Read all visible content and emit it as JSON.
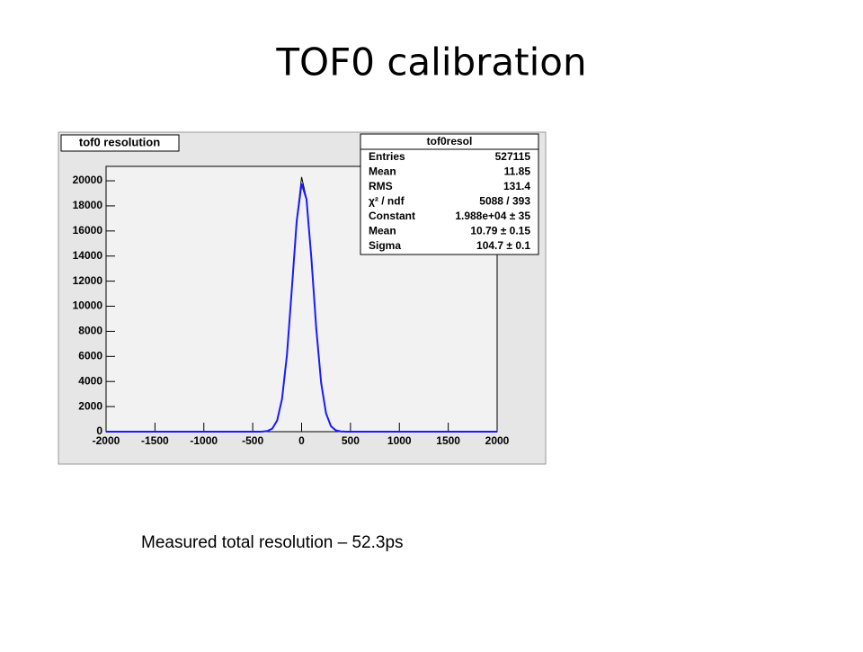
{
  "title": "TOF0 calibration",
  "caption": "Measured total resolution – 52.3ps",
  "chart_data": {
    "type": "line",
    "title": "tof0 resolution",
    "x": [
      -2000,
      -500,
      -450,
      -400,
      -350,
      -300,
      -250,
      -200,
      -150,
      -100,
      -50,
      0,
      50,
      100,
      150,
      200,
      250,
      300,
      350,
      400,
      450,
      500,
      2000
    ],
    "series": [
      {
        "color": "#000000",
        "values": [
          0,
          0,
          2,
          12,
          60,
          260,
          920,
          2650,
          6150,
          11400,
          16900,
          20300,
          18600,
          13800,
          8200,
          3850,
          1450,
          430,
          110,
          22,
          4,
          0,
          0
        ]
      },
      {
        "color": "#1a1aff",
        "values": [
          0,
          0,
          1,
          9,
          52,
          243,
          894,
          2620,
          6113,
          11356,
          16795,
          19775,
          18534,
          13828,
          8214,
          3883,
          1461,
          438,
          105,
          20,
          3,
          0,
          0
        ]
      }
    ],
    "xlim": [
      -2000,
      2000
    ],
    "ylim": [
      0,
      21150
    ],
    "xticks": [
      -2000,
      -1500,
      -1000,
      -500,
      0,
      500,
      1000,
      1500,
      2000
    ],
    "yticks": [
      0,
      2000,
      4000,
      6000,
      8000,
      10000,
      12000,
      14000,
      16000,
      18000,
      20000
    ],
    "stats": {
      "title": "tof0resol",
      "rows": [
        [
          "Entries",
          "527115"
        ],
        [
          "Mean",
          "11.85"
        ],
        [
          "RMS",
          "131.4"
        ],
        [
          "χ² / ndf",
          "5088 / 393"
        ],
        [
          "Constant",
          "1.988e+04 ± 35"
        ],
        [
          "Mean",
          "10.79 ± 0.15"
        ],
        [
          "Sigma",
          "104.7 ± 0.1"
        ]
      ]
    }
  }
}
